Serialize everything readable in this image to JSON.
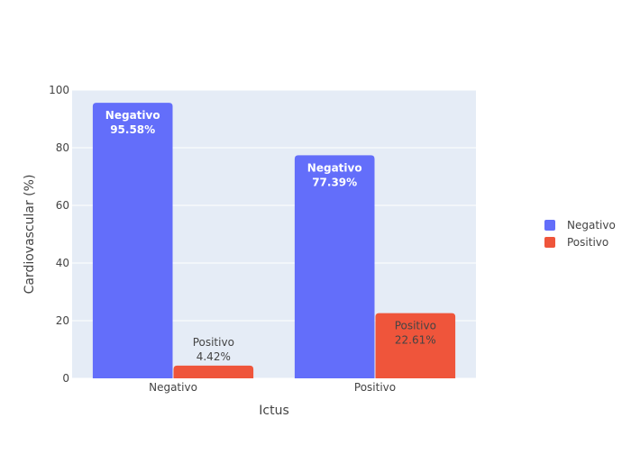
{
  "chart_data": {
    "type": "bar",
    "title": "",
    "xlabel": "Ictus",
    "ylabel": "Cardiovascular (%)",
    "categories": [
      "Negativo",
      "Positivo"
    ],
    "ylim": [
      0,
      100
    ],
    "yticks": [
      0,
      20,
      40,
      60,
      80,
      100
    ],
    "grid": true,
    "legend_position": "right",
    "series": [
      {
        "name": "Negativo",
        "color": "#636efa",
        "values": [
          95.58,
          77.39
        ],
        "labels": [
          "95.58%",
          "77.39%"
        ]
      },
      {
        "name": "Positivo",
        "color": "#ef553b",
        "values": [
          4.42,
          22.61
        ],
        "labels": [
          "4.42%",
          "22.61%"
        ]
      }
    ]
  }
}
